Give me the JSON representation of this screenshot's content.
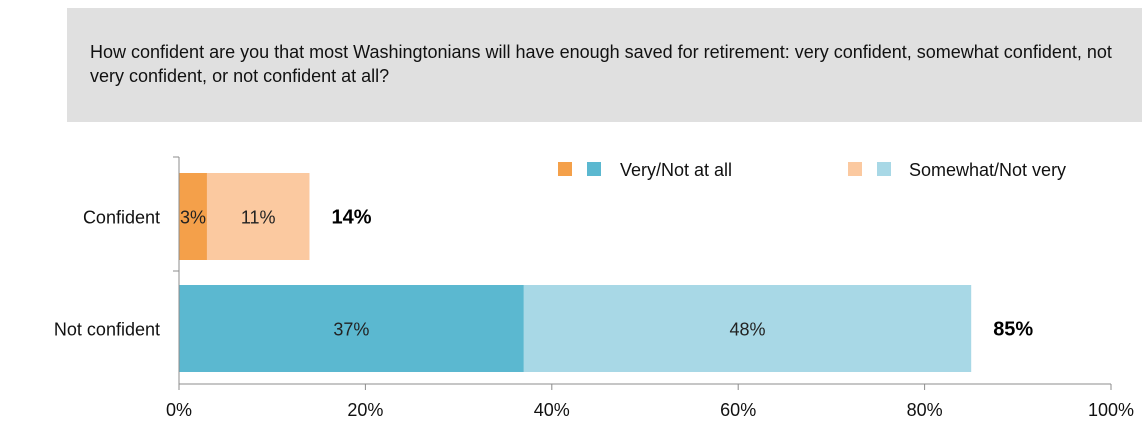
{
  "question": "How confident are you that most Washingtonians will have enough saved for retirement: very confident, somewhat confident, not very confident, or not confident at all?",
  "colors": {
    "confident_strong": "#f4a04a",
    "confident_soft": "#fbc9a0",
    "not_confident_strong": "#5bb8d0",
    "not_confident_soft": "#a8d8e6",
    "question_bg": "#e0e0e0",
    "axis": "#8c8c8c"
  },
  "legend": {
    "items": [
      {
        "label": "Very/Not at all",
        "colors": [
          "#f4a04a",
          "#5bb8d0"
        ]
      },
      {
        "label": "Somewhat/Not very",
        "colors": [
          "#fbc9a0",
          "#a8d8e6"
        ]
      }
    ],
    "position": "top-right"
  },
  "chart_data": {
    "type": "bar",
    "orientation": "horizontal",
    "stacked": true,
    "categories": [
      "Confident",
      "Not confident"
    ],
    "series": [
      {
        "name": "Very/Not at all",
        "values": [
          3,
          37
        ],
        "labels": [
          "3%",
          "37%"
        ]
      },
      {
        "name": "Somewhat/Not very",
        "values": [
          11,
          48
        ],
        "labels": [
          "11%",
          "48%"
        ]
      }
    ],
    "totals": [
      14,
      85
    ],
    "total_labels": [
      "14%",
      "85%"
    ],
    "xlim": [
      0,
      100
    ],
    "xticks": [
      0,
      20,
      40,
      60,
      80,
      100
    ],
    "xtick_labels": [
      "0%",
      "20%",
      "40%",
      "60%",
      "80%",
      "100%"
    ],
    "grid": false,
    "title": "",
    "xlabel": "",
    "ylabel": ""
  }
}
